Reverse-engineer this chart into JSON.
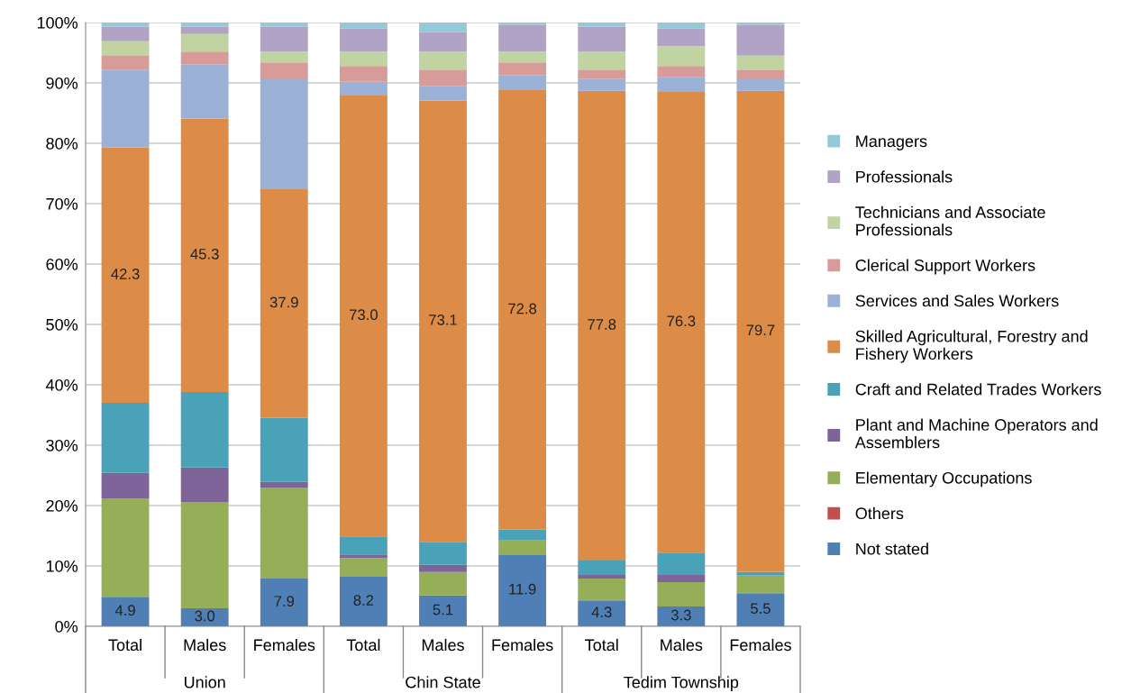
{
  "chart_data": {
    "type": "bar",
    "stacked": true,
    "categories": [
      "Total",
      "Males",
      "Females",
      "Total",
      "Males",
      "Females",
      "Total",
      "Males",
      "Females"
    ],
    "annotations": [
      "Union",
      "Chin State",
      "Tedim Township"
    ],
    "ylim": [
      0,
      100
    ],
    "yticks": [
      {
        "value": 0,
        "label": "0%"
      },
      {
        "value": 10,
        "label": "10%"
      },
      {
        "value": 20,
        "label": "20%"
      },
      {
        "value": 30,
        "label": "30%"
      },
      {
        "value": 40,
        "label": "40%"
      },
      {
        "value": 50,
        "label": "50%"
      },
      {
        "value": 60,
        "label": "60%"
      },
      {
        "value": 70,
        "label": "70%"
      },
      {
        "value": 80,
        "label": "80%"
      },
      {
        "value": 90,
        "label": "90%"
      },
      {
        "value": 100,
        "label": "100%"
      }
    ],
    "grid": "y",
    "legend": "right",
    "series": [
      {
        "name": "Not stated",
        "color": "#4f7fb5",
        "values": [
          4.9,
          3.0,
          7.9,
          8.2,
          5.1,
          11.9,
          4.3,
          3.3,
          5.5
        ],
        "value_labels": [
          "4.9",
          "3.0",
          "7.9",
          "8.2",
          "5.1",
          "11.9",
          "4.3",
          "3.3",
          "5.5"
        ]
      },
      {
        "name": "Others",
        "color": "#c0504d",
        "values": [
          0,
          0,
          0,
          0,
          0,
          0,
          0,
          0,
          0
        ]
      },
      {
        "name": "Elementary Occupations",
        "color": "#95ae58",
        "values": [
          16.3,
          17.6,
          15.1,
          3.1,
          3.9,
          2.3,
          3.6,
          4.0,
          2.9
        ]
      },
      {
        "name": "Plant and Machine Operators and\nAssemblers",
        "color": "#7e6499",
        "values": [
          4.2,
          5.7,
          0.9,
          0.6,
          1.2,
          0,
          0.6,
          1.2,
          0
        ]
      },
      {
        "name": "Craft and Related Trades Workers",
        "color": "#4aa2b8",
        "values": [
          11.6,
          12.5,
          10.6,
          3.0,
          3.8,
          1.8,
          2.4,
          3.7,
          0.6
        ]
      },
      {
        "name": "Skilled Agricultural, Forestry and\nFishery Workers",
        "color": "#dd8c47",
        "values": [
          42.3,
          45.3,
          37.9,
          73.0,
          73.1,
          72.8,
          77.8,
          76.3,
          79.7
        ],
        "value_labels": [
          "42.3",
          "45.3",
          "37.9",
          "73.0",
          "73.1",
          "72.8",
          "77.8",
          "76.3",
          "79.7"
        ]
      },
      {
        "name": "Services and Sales Workers",
        "color": "#9bb1d6",
        "values": [
          12.9,
          9.0,
          18.2,
          2.3,
          2.4,
          2.5,
          2.0,
          2.5,
          1.9
        ]
      },
      {
        "name": "Clerical Support Workers",
        "color": "#d79b99",
        "values": [
          2.4,
          2.1,
          2.8,
          2.6,
          2.7,
          2.1,
          1.5,
          1.8,
          1.5
        ]
      },
      {
        "name": "Technicians and Associate\nProfessionals",
        "color": "#c1d3a0",
        "values": [
          2.3,
          2.9,
          1.8,
          2.4,
          3.0,
          1.8,
          3.0,
          3.3,
          2.4
        ]
      },
      {
        "name": "Professionals",
        "color": "#b0a3c5",
        "values": [
          2.4,
          1.2,
          4.1,
          3.8,
          3.2,
          4.4,
          4.1,
          2.9,
          5.1
        ]
      },
      {
        "name": "Managers",
        "color": "#93c9d9",
        "values": [
          0.7,
          0.7,
          0.7,
          1.0,
          1.6,
          0.4,
          0.7,
          1.0,
          0.4
        ]
      }
    ]
  }
}
